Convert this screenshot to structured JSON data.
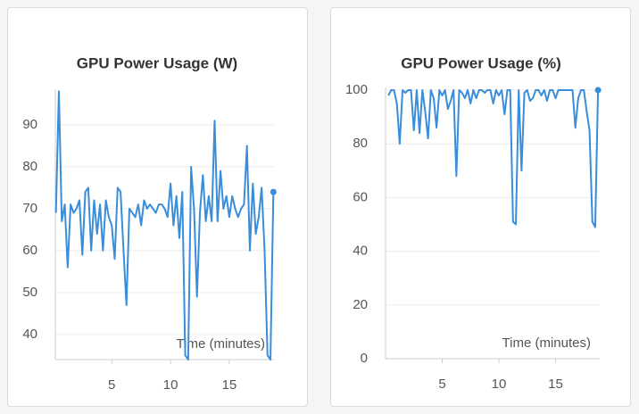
{
  "chart_data": [
    {
      "type": "line",
      "title": "GPU Power Usage (W)",
      "x_label": "Time (minutes)",
      "color": "#3a8ddb",
      "x": [
        0.25,
        0.5,
        0.75,
        1,
        1.25,
        1.5,
        1.75,
        2,
        2.25,
        2.5,
        2.75,
        3,
        3.25,
        3.5,
        3.75,
        4,
        4.25,
        4.5,
        4.75,
        5,
        5.25,
        5.5,
        5.75,
        6,
        6.25,
        6.5,
        6.75,
        7,
        7.25,
        7.5,
        7.75,
        8,
        8.25,
        8.5,
        8.75,
        9,
        9.25,
        9.5,
        9.75,
        10,
        10.25,
        10.5,
        10.75,
        11,
        11.25,
        11.5,
        11.75,
        12,
        12.25,
        12.5,
        12.75,
        13,
        13.25,
        13.5,
        13.75,
        14,
        14.25,
        14.5,
        14.75,
        15,
        15.25,
        15.5,
        15.75,
        16,
        16.25,
        16.5,
        16.75,
        17,
        17.25,
        17.5,
        17.75,
        18,
        18.25,
        18.5,
        18.75
      ],
      "values": [
        69,
        98,
        67,
        71,
        56,
        71,
        69,
        70,
        72,
        59,
        74,
        75,
        60,
        72,
        64,
        71,
        60,
        72,
        68,
        66,
        58,
        75,
        74,
        60,
        47,
        70,
        69,
        68,
        71,
        66,
        72,
        70,
        71,
        70,
        69,
        71,
        71,
        70,
        68,
        76,
        66,
        73,
        63,
        74,
        35,
        34,
        80,
        70,
        49,
        69,
        78,
        67,
        73,
        67,
        91,
        67,
        79,
        70,
        73,
        68,
        73,
        70,
        68,
        70,
        71,
        85,
        60,
        76,
        64,
        68,
        75,
        60,
        35,
        34,
        74
      ],
      "xlim": [
        0.2,
        18.8
      ],
      "ylim": [
        34,
        98.5
      ],
      "xticks": [
        5,
        10,
        15
      ],
      "yticks": [
        40,
        50,
        60,
        70,
        80,
        90
      ],
      "grid": true
    },
    {
      "type": "line",
      "title": "GPU Power Usage (%)",
      "x_label": "Time (minutes)",
      "color": "#3a8ddb",
      "x": [
        0.25,
        0.5,
        0.75,
        1,
        1.25,
        1.5,
        1.75,
        2,
        2.25,
        2.5,
        2.75,
        3,
        3.25,
        3.5,
        3.75,
        4,
        4.25,
        4.5,
        4.75,
        5,
        5.25,
        5.5,
        5.75,
        6,
        6.25,
        6.5,
        6.75,
        7,
        7.25,
        7.5,
        7.75,
        8,
        8.25,
        8.5,
        8.75,
        9,
        9.25,
        9.5,
        9.75,
        10,
        10.25,
        10.5,
        10.75,
        11,
        11.25,
        11.5,
        11.75,
        12,
        12.25,
        12.5,
        12.75,
        13,
        13.25,
        13.5,
        13.75,
        14,
        14.25,
        14.5,
        14.75,
        15,
        15.25,
        15.5,
        15.75,
        16,
        16.25,
        16.5,
        16.75,
        17,
        17.25,
        17.5,
        17.75,
        18,
        18.25,
        18.5,
        18.75
      ],
      "values": [
        98,
        100,
        100,
        95,
        80,
        100,
        99,
        100,
        100,
        85,
        100,
        84,
        100,
        92,
        82,
        100,
        97,
        86,
        100,
        98,
        100,
        93,
        96,
        100,
        68,
        100,
        99,
        97,
        100,
        95,
        100,
        97,
        100,
        100,
        99,
        100,
        100,
        95,
        100,
        98,
        100,
        91,
        100,
        100,
        51,
        50,
        100,
        70,
        99,
        100,
        96,
        97,
        100,
        100,
        98,
        100,
        96,
        100,
        100,
        97,
        100,
        100,
        100,
        100,
        100,
        100,
        86,
        97,
        100,
        100,
        92,
        85,
        51,
        49,
        100
      ],
      "xlim": [
        0,
        18.9
      ],
      "ylim": [
        0,
        101
      ],
      "xticks": [
        5,
        10,
        15
      ],
      "yticks": [
        0,
        20,
        40,
        60,
        80,
        100
      ],
      "grid": true
    }
  ]
}
